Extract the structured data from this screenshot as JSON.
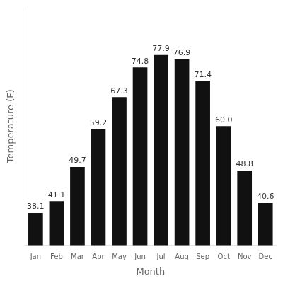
{
  "chart_data": {
    "type": "bar",
    "xlabel": "Month",
    "ylabel": "Temperature (F)",
    "categories": [
      "Jan",
      "Feb",
      "Mar",
      "Apr",
      "May",
      "Jun",
      "Jul",
      "Aug",
      "Sep",
      "Oct",
      "Nov",
      "Dec"
    ],
    "values": [
      38.1,
      41.1,
      49.7,
      59.2,
      67.3,
      74.8,
      77.9,
      76.9,
      71.4,
      60.0,
      48.8,
      40.6
    ],
    "value_labels": [
      "38.1",
      "41.1",
      "49.7",
      "59.2",
      "67.3",
      "74.8",
      "77.9",
      "76.9",
      "71.4",
      "60.0",
      "48.8",
      "40.6"
    ],
    "color": "#111111",
    "ylim": [
      30,
      90
    ],
    "grid": false,
    "data_labels": true,
    "tick_labels": "x"
  }
}
